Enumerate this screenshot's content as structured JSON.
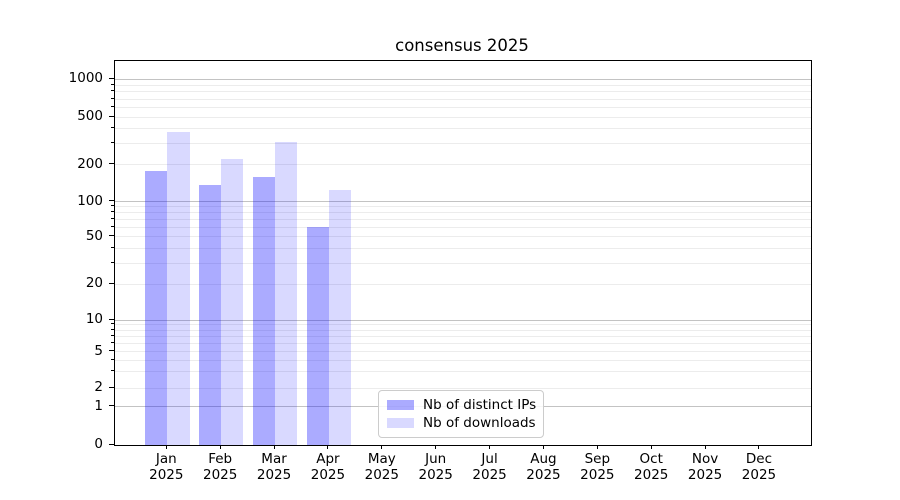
{
  "chart_data": {
    "type": "bar",
    "title": "consensus 2025",
    "categories": [
      "Jan",
      "Feb",
      "Mar",
      "Apr",
      "May",
      "Jun",
      "Jul",
      "Aug",
      "Sep",
      "Oct",
      "Nov",
      "Dec"
    ],
    "year_label": "2025",
    "series": [
      {
        "name": "Nb of distinct IPs",
        "color": "rgba(0,0,255,0.33)",
        "values": [
          178,
          137,
          158,
          61,
          0,
          0,
          0,
          0,
          0,
          0,
          0,
          0
        ]
      },
      {
        "name": "Nb of downloads",
        "color": "rgba(0,0,255,0.15)",
        "values": [
          375,
          225,
          310,
          124,
          0,
          0,
          0,
          0,
          0,
          0,
          0,
          0
        ]
      }
    ],
    "y_axis": {
      "scale": "log",
      "tick_labels": [
        "1000",
        "500",
        "200",
        "100",
        "50",
        "20",
        "10",
        "5",
        "2",
        "1",
        "0"
      ],
      "tick_values": [
        1000,
        500,
        200,
        100,
        50,
        20,
        10,
        5,
        2,
        1,
        0
      ],
      "range_top": 1400
    },
    "grid": true,
    "legend_position": "lower-center",
    "colors": {
      "major_gridline": "#c3c3c3",
      "minor_gridline": "#ececec",
      "spine": "#000000"
    }
  }
}
